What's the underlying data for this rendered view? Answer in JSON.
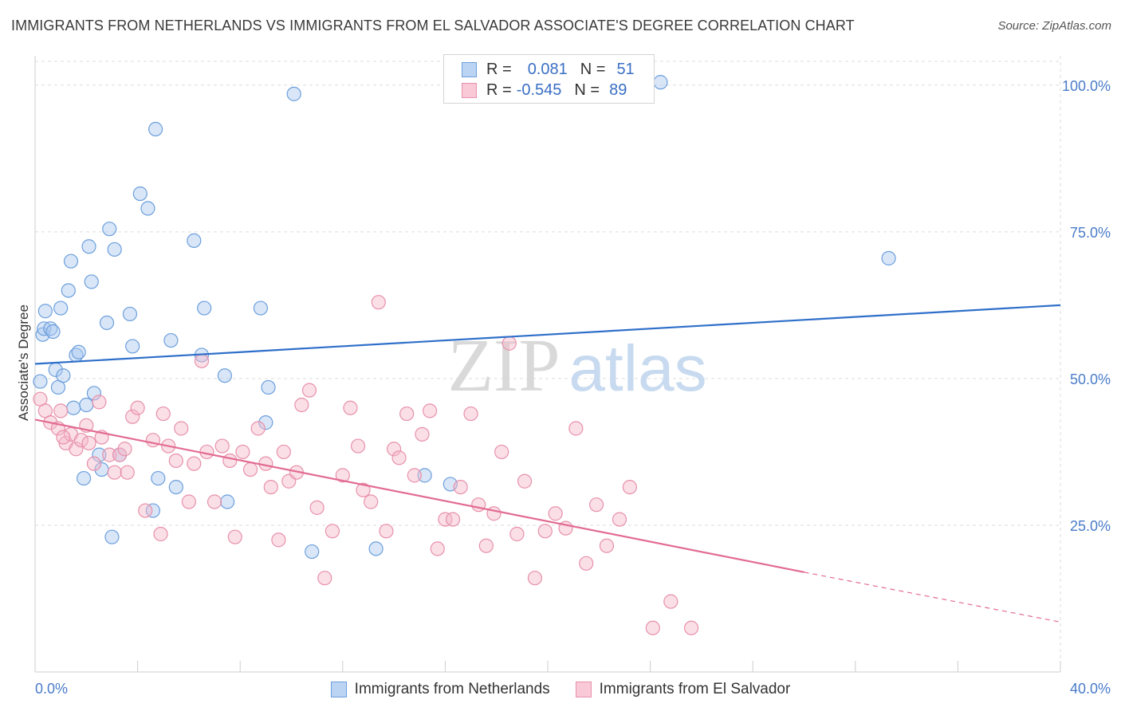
{
  "title": "IMMIGRANTS FROM NETHERLANDS VS IMMIGRANTS FROM EL SALVADOR ASSOCIATE'S DEGREE CORRELATION CHART",
  "source": "Source: ZipAtlas.com",
  "watermark": {
    "zip": "ZIP",
    "atlas": "atlas"
  },
  "legend_top": [
    {
      "r_label": "R =",
      "r_value": "0.081",
      "n_label": "N =",
      "n_value": "51"
    },
    {
      "r_label": "R =",
      "r_value": "-0.545",
      "n_label": "N =",
      "n_value": "89"
    }
  ],
  "colors": {
    "blue_fill": "#a9c8ef",
    "blue_stroke": "#6d9fdc",
    "blue_line": "#2f6fca",
    "pink_fill": "#f5b7c9",
    "pink_stroke": "#e890ab",
    "pink_line": "#e26b93",
    "tick_label": "#4a7cc9",
    "grid": "#dddddd"
  },
  "chart_data": {
    "type": "scatter",
    "title": "IMMIGRANTS FROM NETHERLANDS VS IMMIGRANTS FROM EL SALVADOR ASSOCIATE'S DEGREE CORRELATION CHART",
    "xlabel": "",
    "ylabel": "Associate's Degree",
    "xlim": [
      0,
      40
    ],
    "ylim": [
      0,
      105
    ],
    "x_tick_labels": [
      "0.0%",
      "40.0%"
    ],
    "y_ticks": [
      25,
      50,
      75,
      100
    ],
    "y_tick_labels": [
      "25.0%",
      "50.0%",
      "75.0%",
      "100.0%"
    ],
    "grid": true,
    "legend_placement": "bottom",
    "series": [
      {
        "name": "Immigrants from Netherlands",
        "color": "#6d9fdc",
        "trend": {
          "x": [
            0,
            40
          ],
          "y": [
            52.5,
            62.5
          ]
        },
        "points": [
          [
            0.2,
            49.5
          ],
          [
            0.3,
            57.5
          ],
          [
            0.35,
            58.5
          ],
          [
            0.4,
            61.5
          ],
          [
            0.6,
            58.5
          ],
          [
            0.7,
            58.0
          ],
          [
            0.8,
            51.5
          ],
          [
            0.9,
            48.5
          ],
          [
            1.0,
            62.0
          ],
          [
            1.1,
            50.5
          ],
          [
            1.3,
            65.0
          ],
          [
            1.4,
            70.0
          ],
          [
            1.5,
            45.0
          ],
          [
            1.6,
            54.0
          ],
          [
            1.7,
            54.5
          ],
          [
            1.9,
            33.0
          ],
          [
            2.0,
            45.5
          ],
          [
            2.1,
            72.5
          ],
          [
            2.2,
            66.5
          ],
          [
            2.3,
            47.5
          ],
          [
            2.5,
            37.0
          ],
          [
            2.6,
            34.5
          ],
          [
            2.8,
            59.5
          ],
          [
            2.9,
            75.5
          ],
          [
            3.1,
            72.0
          ],
          [
            3.0,
            23.0
          ],
          [
            3.3,
            37.0
          ],
          [
            3.7,
            61.0
          ],
          [
            3.8,
            55.5
          ],
          [
            4.1,
            81.5
          ],
          [
            4.4,
            79.0
          ],
          [
            4.6,
            27.5
          ],
          [
            4.7,
            92.5
          ],
          [
            4.8,
            33.0
          ],
          [
            5.3,
            56.5
          ],
          [
            5.5,
            31.5
          ],
          [
            6.2,
            73.5
          ],
          [
            6.5,
            54.0
          ],
          [
            6.6,
            62.0
          ],
          [
            7.5,
            29.0
          ],
          [
            7.4,
            50.5
          ],
          [
            8.8,
            62.0
          ],
          [
            9.1,
            48.5
          ],
          [
            9.0,
            42.5
          ],
          [
            10.1,
            98.5
          ],
          [
            10.8,
            20.5
          ],
          [
            13.3,
            21.0
          ],
          [
            15.2,
            33.5
          ],
          [
            16.2,
            32.0
          ],
          [
            24.4,
            100.5
          ],
          [
            33.3,
            70.5
          ]
        ]
      },
      {
        "name": "Immigrants from El Salvador",
        "color": "#e890ab",
        "trend": {
          "x": [
            0,
            30
          ],
          "y": [
            43.0,
            17.0
          ],
          "dash_x": [
            30,
            40
          ],
          "dash_y": [
            17.0,
            8.5
          ]
        },
        "points": [
          [
            0.2,
            46.5
          ],
          [
            0.4,
            44.5
          ],
          [
            0.6,
            42.5
          ],
          [
            0.9,
            41.5
          ],
          [
            1.0,
            44.5
          ],
          [
            1.2,
            39.0
          ],
          [
            1.4,
            40.5
          ],
          [
            1.6,
            38.0
          ],
          [
            1.8,
            39.5
          ],
          [
            2.0,
            42.0
          ],
          [
            2.3,
            35.5
          ],
          [
            2.5,
            46.0
          ],
          [
            2.6,
            40.0
          ],
          [
            2.9,
            37.0
          ],
          [
            3.1,
            34.0
          ],
          [
            3.3,
            37.0
          ],
          [
            3.5,
            38.0
          ],
          [
            3.8,
            43.5
          ],
          [
            4.0,
            45.0
          ],
          [
            4.3,
            27.5
          ],
          [
            4.6,
            39.5
          ],
          [
            4.9,
            23.5
          ],
          [
            5.2,
            38.5
          ],
          [
            5.5,
            36.0
          ],
          [
            5.7,
            41.5
          ],
          [
            6.0,
            29.0
          ],
          [
            6.2,
            35.5
          ],
          [
            6.5,
            53.0
          ],
          [
            6.7,
            37.5
          ],
          [
            7.0,
            29.0
          ],
          [
            7.3,
            38.5
          ],
          [
            7.6,
            36.0
          ],
          [
            7.8,
            23.0
          ],
          [
            8.1,
            37.5
          ],
          [
            8.4,
            34.5
          ],
          [
            8.7,
            41.5
          ],
          [
            9.0,
            35.5
          ],
          [
            9.2,
            31.5
          ],
          [
            9.5,
            22.5
          ],
          [
            9.7,
            37.5
          ],
          [
            9.9,
            32.5
          ],
          [
            10.2,
            34.0
          ],
          [
            10.4,
            45.5
          ],
          [
            10.7,
            48.0
          ],
          [
            11.0,
            28.0
          ],
          [
            11.3,
            16.0
          ],
          [
            11.6,
            24.0
          ],
          [
            12.0,
            33.5
          ],
          [
            12.3,
            45.0
          ],
          [
            12.6,
            38.5
          ],
          [
            12.8,
            31.0
          ],
          [
            13.1,
            29.0
          ],
          [
            13.4,
            63.0
          ],
          [
            13.7,
            24.0
          ],
          [
            14.0,
            38.0
          ],
          [
            14.2,
            36.5
          ],
          [
            14.5,
            44.0
          ],
          [
            14.8,
            33.5
          ],
          [
            15.1,
            40.5
          ],
          [
            15.4,
            44.5
          ],
          [
            15.7,
            21.0
          ],
          [
            16.0,
            26.0
          ],
          [
            16.3,
            26.0
          ],
          [
            16.6,
            31.5
          ],
          [
            17.0,
            44.0
          ],
          [
            17.3,
            28.5
          ],
          [
            17.6,
            21.5
          ],
          [
            17.9,
            27.0
          ],
          [
            18.2,
            37.5
          ],
          [
            18.5,
            56.0
          ],
          [
            18.8,
            23.5
          ],
          [
            19.1,
            32.5
          ],
          [
            19.5,
            16.0
          ],
          [
            19.9,
            24.0
          ],
          [
            20.3,
            27.0
          ],
          [
            20.7,
            24.5
          ],
          [
            21.1,
            41.5
          ],
          [
            21.5,
            18.5
          ],
          [
            21.9,
            28.5
          ],
          [
            22.3,
            21.5
          ],
          [
            22.8,
            26.0
          ],
          [
            23.2,
            31.5
          ],
          [
            24.1,
            7.5
          ],
          [
            24.8,
            12.0
          ],
          [
            25.6,
            7.5
          ],
          [
            1.1,
            40.0
          ],
          [
            3.6,
            34.0
          ],
          [
            5.0,
            44.0
          ],
          [
            2.1,
            39.0
          ]
        ]
      }
    ]
  },
  "legend_bottom": [
    {
      "label": "Immigrants from Netherlands"
    },
    {
      "label": "Immigrants from El Salvador"
    }
  ]
}
